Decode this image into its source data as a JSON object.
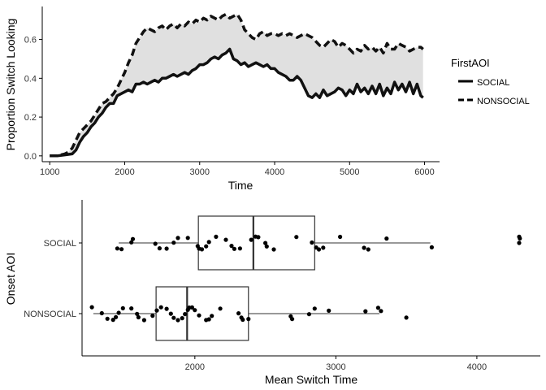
{
  "chart_data": [
    {
      "type": "line",
      "title": "",
      "xlabel": "Time",
      "ylabel": "Proportion Switch Looking",
      "xlim": [
        900,
        6200
      ],
      "ylim": [
        -0.03,
        0.77
      ],
      "xticks": [
        1000,
        2000,
        3000,
        4000,
        5000,
        6000
      ],
      "yticks": [
        0.0,
        0.2,
        0.4,
        0.6
      ],
      "ytick_labels": [
        "0.0",
        "0.2",
        "0.4",
        "0.6"
      ],
      "grid": false,
      "legend": {
        "title": "FirstAOI",
        "position": "right"
      },
      "shaded_band_between_series": true,
      "colors": {
        "social": "#111111",
        "nonsocial": "#111111",
        "band": "#e0e0e0"
      },
      "series": [
        {
          "name": "SOCIAL",
          "style": "solid",
          "x": [
            1000,
            1100,
            1200,
            1300,
            1350,
            1400,
            1450,
            1500,
            1550,
            1600,
            1650,
            1700,
            1750,
            1800,
            1850,
            1900,
            1950,
            2000,
            2050,
            2100,
            2150,
            2200,
            2250,
            2300,
            2350,
            2400,
            2450,
            2500,
            2550,
            2600,
            2650,
            2700,
            2750,
            2800,
            2850,
            2900,
            2950,
            3000,
            3050,
            3100,
            3150,
            3200,
            3250,
            3300,
            3350,
            3400,
            3450,
            3500,
            3550,
            3600,
            3650,
            3700,
            3750,
            3800,
            3850,
            3900,
            3950,
            4000,
            4050,
            4100,
            4150,
            4200,
            4250,
            4300,
            4350,
            4400,
            4450,
            4500,
            4550,
            4600,
            4650,
            4700,
            4750,
            4800,
            4850,
            4900,
            4950,
            5000,
            5050,
            5100,
            5150,
            5200,
            5250,
            5300,
            5350,
            5400,
            5450,
            5500,
            5550,
            5600,
            5650,
            5700,
            5750,
            5800,
            5850,
            5900,
            5950,
            5980
          ],
          "y": [
            0.0,
            0.0,
            0.005,
            0.01,
            0.03,
            0.07,
            0.1,
            0.12,
            0.15,
            0.17,
            0.2,
            0.22,
            0.25,
            0.27,
            0.27,
            0.31,
            0.32,
            0.33,
            0.34,
            0.33,
            0.37,
            0.37,
            0.38,
            0.37,
            0.38,
            0.39,
            0.38,
            0.4,
            0.4,
            0.41,
            0.42,
            0.41,
            0.42,
            0.43,
            0.42,
            0.44,
            0.45,
            0.47,
            0.47,
            0.48,
            0.5,
            0.51,
            0.5,
            0.52,
            0.53,
            0.55,
            0.5,
            0.49,
            0.47,
            0.48,
            0.46,
            0.47,
            0.48,
            0.47,
            0.46,
            0.47,
            0.45,
            0.45,
            0.43,
            0.42,
            0.41,
            0.39,
            0.39,
            0.41,
            0.39,
            0.35,
            0.31,
            0.3,
            0.32,
            0.3,
            0.34,
            0.31,
            0.32,
            0.33,
            0.35,
            0.34,
            0.31,
            0.34,
            0.32,
            0.37,
            0.33,
            0.35,
            0.32,
            0.36,
            0.32,
            0.37,
            0.31,
            0.35,
            0.32,
            0.38,
            0.34,
            0.37,
            0.33,
            0.38,
            0.32,
            0.37,
            0.31,
            0.3
          ]
        },
        {
          "name": "NONSOCIAL",
          "style": "dashed",
          "x": [
            1000,
            1100,
            1200,
            1250,
            1300,
            1350,
            1400,
            1450,
            1500,
            1550,
            1600,
            1650,
            1700,
            1750,
            1800,
            1850,
            1900,
            1950,
            2000,
            2050,
            2100,
            2150,
            2200,
            2250,
            2300,
            2350,
            2400,
            2450,
            2500,
            2550,
            2600,
            2650,
            2700,
            2750,
            2800,
            2850,
            2900,
            2950,
            3000,
            3050,
            3100,
            3150,
            3200,
            3250,
            3300,
            3350,
            3400,
            3450,
            3500,
            3550,
            3600,
            3650,
            3700,
            3750,
            3800,
            3850,
            3900,
            3950,
            4000,
            4050,
            4100,
            4150,
            4200,
            4250,
            4300,
            4350,
            4400,
            4450,
            4500,
            4550,
            4600,
            4650,
            4700,
            4750,
            4800,
            4850,
            4900,
            4950,
            5000,
            5050,
            5100,
            5150,
            5200,
            5250,
            5300,
            5350,
            5400,
            5450,
            5500,
            5550,
            5600,
            5650,
            5700,
            5750,
            5800,
            5850,
            5900,
            5950,
            5980
          ],
          "y": [
            0.0,
            0.0,
            0.01,
            0.02,
            0.04,
            0.08,
            0.12,
            0.14,
            0.16,
            0.18,
            0.21,
            0.24,
            0.27,
            0.28,
            0.3,
            0.32,
            0.35,
            0.39,
            0.43,
            0.48,
            0.52,
            0.58,
            0.61,
            0.64,
            0.66,
            0.65,
            0.64,
            0.66,
            0.67,
            0.65,
            0.67,
            0.68,
            0.66,
            0.68,
            0.67,
            0.69,
            0.68,
            0.7,
            0.69,
            0.71,
            0.7,
            0.72,
            0.71,
            0.7,
            0.72,
            0.73,
            0.71,
            0.72,
            0.73,
            0.7,
            0.65,
            0.63,
            0.61,
            0.6,
            0.63,
            0.64,
            0.62,
            0.63,
            0.63,
            0.62,
            0.63,
            0.62,
            0.63,
            0.62,
            0.61,
            0.62,
            0.63,
            0.62,
            0.61,
            0.59,
            0.57,
            0.56,
            0.58,
            0.6,
            0.59,
            0.56,
            0.58,
            0.57,
            0.55,
            0.53,
            0.55,
            0.54,
            0.57,
            0.55,
            0.56,
            0.54,
            0.56,
            0.53,
            0.58,
            0.55,
            0.55,
            0.58,
            0.57,
            0.56,
            0.54,
            0.55,
            0.56,
            0.56,
            0.55
          ]
        }
      ]
    },
    {
      "type": "box",
      "title": "",
      "xlabel": "Mean Switch Time",
      "ylabel": "Onset AOI",
      "xlim": [
        1200,
        4450
      ],
      "xticks": [
        2000,
        3000,
        4000
      ],
      "categories": [
        "SOCIAL",
        "NONSOCIAL"
      ],
      "grid": false,
      "boxes": [
        {
          "category": "SOCIAL",
          "whisker_low": 1460,
          "q1": 2025,
          "median": 2415,
          "q3": 2850,
          "whisker_high": 3670,
          "outliers": [
            4300
          ]
        },
        {
          "category": "NONSOCIAL",
          "whisker_low": 1280,
          "q1": 1725,
          "median": 1945,
          "q3": 2380,
          "whisker_high": 3310,
          "outliers": []
        }
      ],
      "points": [
        {
          "category": "SOCIAL",
          "values": [
            1450,
            1480,
            1550,
            1560,
            1720,
            1750,
            1800,
            1850,
            1880,
            1950,
            2020,
            2030,
            2050,
            2080,
            2100,
            2150,
            2220,
            2260,
            2280,
            2320,
            2400,
            2430,
            2450,
            2500,
            2510,
            2560,
            2720,
            2830,
            2860,
            2880,
            2910,
            3030,
            3200,
            3230,
            3360,
            3680,
            4300,
            4305
          ]
        },
        {
          "category": "NONSOCIAL",
          "values": [
            1270,
            1340,
            1380,
            1420,
            1440,
            1460,
            1490,
            1550,
            1590,
            1600,
            1640,
            1700,
            1730,
            1760,
            1800,
            1830,
            1850,
            1880,
            1910,
            1930,
            1950,
            1960,
            1980,
            2000,
            2030,
            2080,
            2100,
            2120,
            2180,
            2310,
            2330,
            2340,
            2380,
            2680,
            2690,
            2810,
            2850,
            2950,
            3210,
            3300,
            3320,
            3500
          ]
        }
      ]
    }
  ]
}
